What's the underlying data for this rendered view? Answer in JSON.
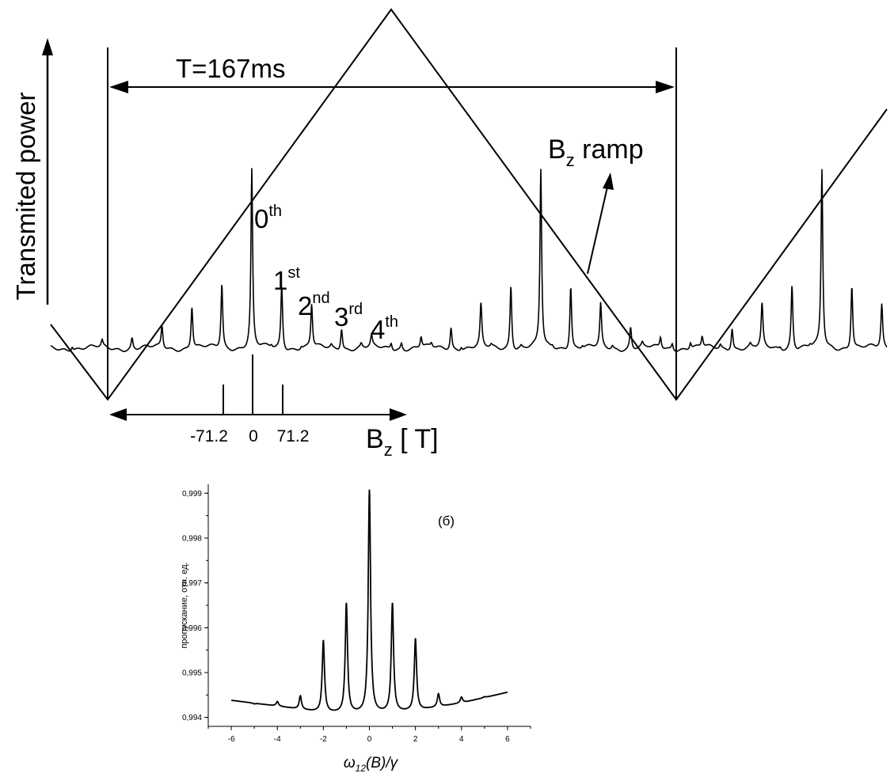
{
  "top": {
    "ylabel": "Transmited power",
    "period_label": "T=167ms",
    "ramp_label": {
      "main": "B",
      "sub": "z",
      "rest": " ramp"
    },
    "order_labels": [
      {
        "base": "0",
        "sup": "th"
      },
      {
        "base": "1",
        "sup": "st"
      },
      {
        "base": "2",
        "sup": "nd"
      },
      {
        "base": "3",
        "sup": "rd"
      },
      {
        "base": "4",
        "sup": "th"
      }
    ],
    "axis_label": {
      "main": "B",
      "sub": "z",
      "rest": " [   T]"
    },
    "tick_labels": [
      "-71.2",
      "0",
      "71.2"
    ]
  },
  "chart_data": {
    "type": "line",
    "panel_label": "(б)",
    "ylabel": "пропускание, отн. ед.",
    "xlabel": {
      "main": "ω",
      "sub": "12",
      "rest": "(B)/γ"
    },
    "xlim": [
      -7,
      7
    ],
    "ylim": [
      0.9938,
      0.9992
    ],
    "xticks": [
      -6,
      -4,
      -2,
      0,
      2,
      4,
      6
    ],
    "yticks": [
      0.994,
      0.995,
      0.996,
      0.997,
      0.998,
      0.999
    ],
    "ytick_labels": [
      "0,994",
      "0,995",
      "0,996",
      "0,997",
      "0,998",
      "0,999"
    ],
    "baseline": {
      "x": [
        -6,
        -4,
        -2,
        0,
        2,
        4,
        6
      ],
      "y": [
        0.99438,
        0.99425,
        0.9941,
        0.99408,
        0.99414,
        0.99432,
        0.99456
      ]
    },
    "peaks": [
      {
        "x": -5,
        "y": 0.9943
      },
      {
        "x": -4,
        "y": 0.99435
      },
      {
        "x": -3,
        "y": 0.99447
      },
      {
        "x": -2,
        "y": 0.99571
      },
      {
        "x": -1,
        "y": 0.99653
      },
      {
        "x": 0,
        "y": 0.99906
      },
      {
        "x": 1,
        "y": 0.99653
      },
      {
        "x": 2,
        "y": 0.99575
      },
      {
        "x": 3,
        "y": 0.99452
      },
      {
        "x": 4,
        "y": 0.99445
      },
      {
        "x": 5,
        "y": 0.99446
      }
    ]
  }
}
